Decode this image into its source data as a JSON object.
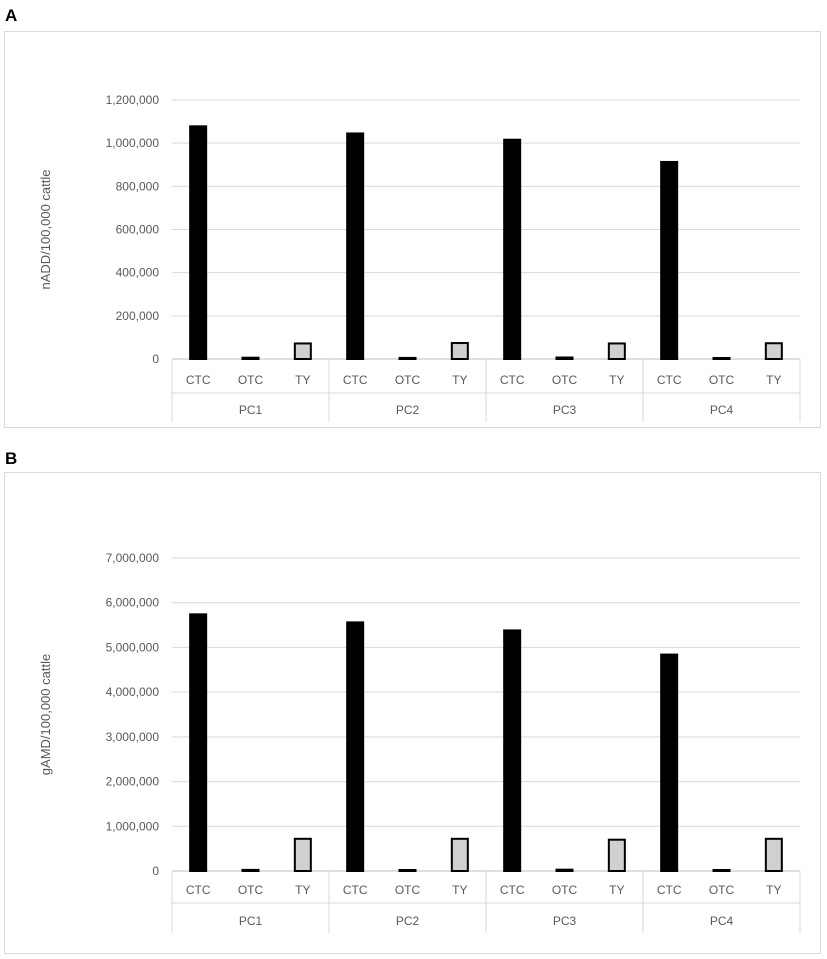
{
  "panels": [
    {
      "label": "A"
    },
    {
      "label": "B"
    }
  ],
  "chart_data": [
    {
      "type": "bar",
      "title": "",
      "ylabel": "nADD/100,000 cattle",
      "xlabel": "",
      "ylim": [
        0,
        1200000
      ],
      "yticks": [
        0,
        200000,
        400000,
        600000,
        800000,
        1000000,
        1200000
      ],
      "ytick_labels": [
        "0",
        "200,000",
        "400,000",
        "600,000",
        "800,000",
        "1,000,000",
        "1,200,000"
      ],
      "groups": [
        "PC1",
        "PC2",
        "PC3",
        "PC4"
      ],
      "categories": [
        "CTC",
        "OTC",
        "TY"
      ],
      "series_colors": {
        "CTC": "#000000",
        "OTC": "#000000",
        "TY": "#d0d0d0"
      },
      "values": [
        [
          1078000,
          6000,
          72000
        ],
        [
          1045000,
          5000,
          74000
        ],
        [
          1016000,
          7000,
          72000
        ],
        [
          913000,
          3000,
          73000
        ]
      ],
      "grid": true,
      "legend": "none"
    },
    {
      "type": "bar",
      "title": "",
      "ylabel": "gAMD/100,000 cattle",
      "xlabel": "",
      "ylim": [
        0,
        7000000
      ],
      "yticks": [
        0,
        1000000,
        2000000,
        3000000,
        4000000,
        5000000,
        6000000,
        7000000
      ],
      "ytick_labels": [
        "0",
        "1,000,000",
        "2,000,000",
        "3,000,000",
        "4,000,000",
        "5,000,000",
        "6,000,000",
        "7,000,000"
      ],
      "groups": [
        "PC1",
        "PC2",
        "PC3",
        "PC4"
      ],
      "categories": [
        "CTC",
        "OTC",
        "TY"
      ],
      "series_colors": {
        "CTC": "#000000",
        "OTC": "#000000",
        "TY": "#d0d0d0"
      },
      "values": [
        [
          5740000,
          25000,
          720000
        ],
        [
          5560000,
          22000,
          720000
        ],
        [
          5380000,
          30000,
          700000
        ],
        [
          4840000,
          10000,
          720000
        ]
      ],
      "grid": true,
      "legend": "none"
    }
  ]
}
